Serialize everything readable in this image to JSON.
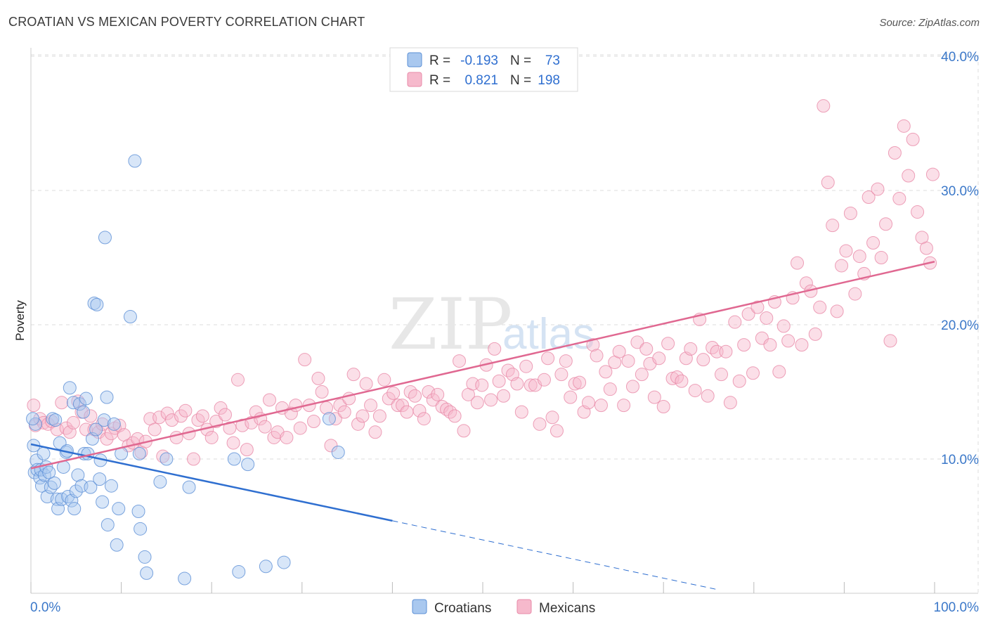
{
  "title": "CROATIAN VS MEXICAN POVERTY CORRELATION CHART",
  "source": "Source: ZipAtlas.com",
  "watermark": {
    "zip": "ZIP",
    "atlas": "atlas"
  },
  "legend": {
    "rows": [
      {
        "r_label": "R =",
        "r_value": "-0.193",
        "n_label": "N =",
        "n_value": "73"
      },
      {
        "r_label": "R =",
        "r_value": "0.821",
        "n_label": "N =",
        "n_value": "198"
      }
    ]
  },
  "colors": {
    "croatians_fill": "#a9c8ef",
    "croatians_stroke": "#5b8fd6",
    "croatians_line": "#2f6fd0",
    "mexicans_fill": "#f6b9cc",
    "mexicans_stroke": "#e88aa8",
    "mexicans_line": "#e06891",
    "tick_label": "#3b78c9",
    "grid": "#dddddd"
  },
  "chart_data": {
    "type": "scatter",
    "xlabel": "",
    "ylabel": "Poverty",
    "x_tick_labels": [
      "0.0%",
      "100.0%"
    ],
    "y_tick_labels": [
      "10.0%",
      "20.0%",
      "30.0%",
      "40.0%"
    ],
    "xlim": [
      0,
      100
    ],
    "ylim": [
      0,
      40
    ],
    "legend_placement": "top-center",
    "series": [
      {
        "name": "Croatians",
        "trend": {
          "x0": 0,
          "y0": 11.1,
          "x1": 40,
          "y1": 5.4,
          "dashed_to_x": 76
        },
        "points": [
          [
            0.3,
            11.0
          ],
          [
            0.4,
            9.0
          ],
          [
            0.5,
            12.6
          ],
          [
            0.6,
            9.9
          ],
          [
            0.7,
            9.2
          ],
          [
            1.0,
            8.6
          ],
          [
            1.1,
            9.2
          ],
          [
            1.2,
            8.0
          ],
          [
            1.4,
            10.4
          ],
          [
            1.5,
            8.8
          ],
          [
            1.7,
            9.4
          ],
          [
            1.8,
            7.2
          ],
          [
            2.0,
            9.0
          ],
          [
            2.2,
            7.9
          ],
          [
            2.4,
            13.0
          ],
          [
            2.6,
            8.2
          ],
          [
            2.7,
            12.9
          ],
          [
            2.9,
            7.0
          ],
          [
            3.0,
            6.3
          ],
          [
            3.2,
            11.2
          ],
          [
            3.4,
            7.0
          ],
          [
            3.6,
            9.4
          ],
          [
            3.9,
            10.5
          ],
          [
            4.0,
            10.6
          ],
          [
            4.1,
            7.2
          ],
          [
            4.3,
            15.3
          ],
          [
            4.5,
            6.9
          ],
          [
            4.7,
            14.2
          ],
          [
            4.8,
            6.3
          ],
          [
            5.0,
            7.6
          ],
          [
            5.2,
            8.8
          ],
          [
            5.4,
            14.1
          ],
          [
            5.6,
            8.0
          ],
          [
            5.8,
            13.5
          ],
          [
            5.9,
            10.4
          ],
          [
            6.1,
            14.5
          ],
          [
            6.3,
            10.4
          ],
          [
            6.6,
            7.9
          ],
          [
            6.8,
            11.5
          ],
          [
            7.0,
            21.6
          ],
          [
            7.2,
            12.2
          ],
          [
            7.3,
            21.5
          ],
          [
            7.6,
            8.5
          ],
          [
            7.7,
            9.9
          ],
          [
            7.9,
            6.8
          ],
          [
            8.1,
            12.9
          ],
          [
            8.2,
            26.5
          ],
          [
            8.4,
            14.6
          ],
          [
            8.5,
            5.1
          ],
          [
            8.9,
            8.0
          ],
          [
            9.2,
            12.6
          ],
          [
            9.5,
            3.6
          ],
          [
            9.7,
            6.3
          ],
          [
            10.0,
            10.4
          ],
          [
            11.0,
            20.6
          ],
          [
            11.5,
            32.2
          ],
          [
            11.9,
            6.1
          ],
          [
            12.0,
            10.4
          ],
          [
            12.1,
            4.8
          ],
          [
            12.6,
            2.7
          ],
          [
            12.8,
            1.5
          ],
          [
            14.3,
            8.3
          ],
          [
            15.0,
            10.0
          ],
          [
            17.0,
            1.1
          ],
          [
            17.5,
            7.9
          ],
          [
            22.5,
            10.0
          ],
          [
            23.0,
            1.6
          ],
          [
            24.0,
            9.6
          ],
          [
            26.0,
            2.0
          ],
          [
            28.0,
            2.3
          ],
          [
            33.0,
            13.0
          ],
          [
            34.0,
            10.5
          ],
          [
            0.2,
            13.0
          ]
        ]
      },
      {
        "name": "Mexicans",
        "trend": {
          "x0": 0,
          "y0": 9.3,
          "x1": 100,
          "y1": 24.7
        },
        "points": [
          [
            0.3,
            14.0
          ],
          [
            0.5,
            12.5
          ],
          [
            1.0,
            13.0
          ],
          [
            1.4,
            12.7
          ],
          [
            1.9,
            12.6
          ],
          [
            2.3,
            12.8
          ],
          [
            2.9,
            12.2
          ],
          [
            3.4,
            14.2
          ],
          [
            3.9,
            12.3
          ],
          [
            4.3,
            12.0
          ],
          [
            4.7,
            12.7
          ],
          [
            5.2,
            14.3
          ],
          [
            5.6,
            13.5
          ],
          [
            6.1,
            12.2
          ],
          [
            6.6,
            13.2
          ],
          [
            7.0,
            12.2
          ],
          [
            7.5,
            12.0
          ],
          [
            7.9,
            12.6
          ],
          [
            8.4,
            11.5
          ],
          [
            8.9,
            11.9
          ],
          [
            9.3,
            12.3
          ],
          [
            9.8,
            12.5
          ],
          [
            10.3,
            11.8
          ],
          [
            10.8,
            11.0
          ],
          [
            11.3,
            11.2
          ],
          [
            11.8,
            11.5
          ],
          [
            12.2,
            10.5
          ],
          [
            12.7,
            11.3
          ],
          [
            13.2,
            13.0
          ],
          [
            13.7,
            12.2
          ],
          [
            14.2,
            13.1
          ],
          [
            14.6,
            10.2
          ],
          [
            15.1,
            13.4
          ],
          [
            15.6,
            12.9
          ],
          [
            16.1,
            11.6
          ],
          [
            16.6,
            13.2
          ],
          [
            17.1,
            13.6
          ],
          [
            17.5,
            11.9
          ],
          [
            18.0,
            10.0
          ],
          [
            18.5,
            12.9
          ],
          [
            19.0,
            13.2
          ],
          [
            19.5,
            12.2
          ],
          [
            20.0,
            11.6
          ],
          [
            20.5,
            12.8
          ],
          [
            21.0,
            13.8
          ],
          [
            21.5,
            13.3
          ],
          [
            22.0,
            12.3
          ],
          [
            22.4,
            11.2
          ],
          [
            22.9,
            15.9
          ],
          [
            23.4,
            12.5
          ],
          [
            23.9,
            10.7
          ],
          [
            24.4,
            12.7
          ],
          [
            24.9,
            13.5
          ],
          [
            25.4,
            13.0
          ],
          [
            25.9,
            12.4
          ],
          [
            26.4,
            14.4
          ],
          [
            26.9,
            11.6
          ],
          [
            27.3,
            12.0
          ],
          [
            27.8,
            13.8
          ],
          [
            28.3,
            11.6
          ],
          [
            28.8,
            13.4
          ],
          [
            29.3,
            14.0
          ],
          [
            29.8,
            12.3
          ],
          [
            30.3,
            17.4
          ],
          [
            30.8,
            14.0
          ],
          [
            31.3,
            12.8
          ],
          [
            31.8,
            16.0
          ],
          [
            32.2,
            15.0
          ],
          [
            32.7,
            13.8
          ],
          [
            33.2,
            11.0
          ],
          [
            33.7,
            13.0
          ],
          [
            34.2,
            14.0
          ],
          [
            34.7,
            13.5
          ],
          [
            35.2,
            14.5
          ],
          [
            35.7,
            16.3
          ],
          [
            36.2,
            12.6
          ],
          [
            36.7,
            13.2
          ],
          [
            37.1,
            15.6
          ],
          [
            37.6,
            14.0
          ],
          [
            38.1,
            12.0
          ],
          [
            38.6,
            13.2
          ],
          [
            39.1,
            15.9
          ],
          [
            39.6,
            14.5
          ],
          [
            40.1,
            14.9
          ],
          [
            40.6,
            14.0
          ],
          [
            41.1,
            14.0
          ],
          [
            41.6,
            13.5
          ],
          [
            42.0,
            15.0
          ],
          [
            42.5,
            14.7
          ],
          [
            43.0,
            13.6
          ],
          [
            43.5,
            13.0
          ],
          [
            44.0,
            15.0
          ],
          [
            44.5,
            14.4
          ],
          [
            45.0,
            14.8
          ],
          [
            45.5,
            13.9
          ],
          [
            46.0,
            13.7
          ],
          [
            46.4,
            13.5
          ],
          [
            46.9,
            13.2
          ],
          [
            47.4,
            17.3
          ],
          [
            47.9,
            12.1
          ],
          [
            48.4,
            14.8
          ],
          [
            48.9,
            15.6
          ],
          [
            49.4,
            14.2
          ],
          [
            49.9,
            15.5
          ],
          [
            50.4,
            17.0
          ],
          [
            50.9,
            14.4
          ],
          [
            51.3,
            18.2
          ],
          [
            51.8,
            15.8
          ],
          [
            52.3,
            14.7
          ],
          [
            52.8,
            16.6
          ],
          [
            53.3,
            16.3
          ],
          [
            53.8,
            15.6
          ],
          [
            54.3,
            13.5
          ],
          [
            54.8,
            16.9
          ],
          [
            55.3,
            15.5
          ],
          [
            55.8,
            15.5
          ],
          [
            56.3,
            12.6
          ],
          [
            56.8,
            15.9
          ],
          [
            57.2,
            17.5
          ],
          [
            57.7,
            13.1
          ],
          [
            58.2,
            12.1
          ],
          [
            58.7,
            16.3
          ],
          [
            59.2,
            17.3
          ],
          [
            59.7,
            14.6
          ],
          [
            60.2,
            15.6
          ],
          [
            60.7,
            15.7
          ],
          [
            61.2,
            13.5
          ],
          [
            61.7,
            14.2
          ],
          [
            62.2,
            18.5
          ],
          [
            62.6,
            17.7
          ],
          [
            63.1,
            14.0
          ],
          [
            63.6,
            16.5
          ],
          [
            64.1,
            15.2
          ],
          [
            64.6,
            17.2
          ],
          [
            65.1,
            18.0
          ],
          [
            65.6,
            14.0
          ],
          [
            66.1,
            17.3
          ],
          [
            66.6,
            15.4
          ],
          [
            67.1,
            18.7
          ],
          [
            67.6,
            16.3
          ],
          [
            68.1,
            18.2
          ],
          [
            68.5,
            17.1
          ],
          [
            69.0,
            14.6
          ],
          [
            69.5,
            17.5
          ],
          [
            70.0,
            13.9
          ],
          [
            70.5,
            18.6
          ],
          [
            71.0,
            16.0
          ],
          [
            71.5,
            16.1
          ],
          [
            72.0,
            15.8
          ],
          [
            72.5,
            17.5
          ],
          [
            73.0,
            18.2
          ],
          [
            73.5,
            15.1
          ],
          [
            74.0,
            20.4
          ],
          [
            74.4,
            17.4
          ],
          [
            74.9,
            14.7
          ],
          [
            75.4,
            18.3
          ],
          [
            75.9,
            18.0
          ],
          [
            76.4,
            16.3
          ],
          [
            76.9,
            18.0
          ],
          [
            77.4,
            14.2
          ],
          [
            77.9,
            20.2
          ],
          [
            78.4,
            15.8
          ],
          [
            78.9,
            18.5
          ],
          [
            79.4,
            20.8
          ],
          [
            79.9,
            16.4
          ],
          [
            80.4,
            21.3
          ],
          [
            80.9,
            19.0
          ],
          [
            81.4,
            20.5
          ],
          [
            81.8,
            18.5
          ],
          [
            82.3,
            21.7
          ],
          [
            82.8,
            16.5
          ],
          [
            83.3,
            19.9
          ],
          [
            83.8,
            18.8
          ],
          [
            84.3,
            22.0
          ],
          [
            84.8,
            24.6
          ],
          [
            85.3,
            18.5
          ],
          [
            85.8,
            23.1
          ],
          [
            86.3,
            22.5
          ],
          [
            86.8,
            19.3
          ],
          [
            87.3,
            21.3
          ],
          [
            87.7,
            36.3
          ],
          [
            88.2,
            30.6
          ],
          [
            88.7,
            27.4
          ],
          [
            89.2,
            21.0
          ],
          [
            89.7,
            24.4
          ],
          [
            90.2,
            25.5
          ],
          [
            90.7,
            28.3
          ],
          [
            91.2,
            22.3
          ],
          [
            91.7,
            25.1
          ],
          [
            92.2,
            23.8
          ],
          [
            92.7,
            29.5
          ],
          [
            93.2,
            26.1
          ],
          [
            93.7,
            30.1
          ],
          [
            94.1,
            25.0
          ],
          [
            94.6,
            27.5
          ],
          [
            95.1,
            18.8
          ],
          [
            95.6,
            32.8
          ],
          [
            96.1,
            29.4
          ],
          [
            96.6,
            34.8
          ],
          [
            97.1,
            31.1
          ],
          [
            97.6,
            33.8
          ],
          [
            98.1,
            28.4
          ],
          [
            98.6,
            26.5
          ],
          [
            99.1,
            25.7
          ],
          [
            99.5,
            24.6
          ],
          [
            99.8,
            31.2
          ]
        ]
      }
    ]
  }
}
